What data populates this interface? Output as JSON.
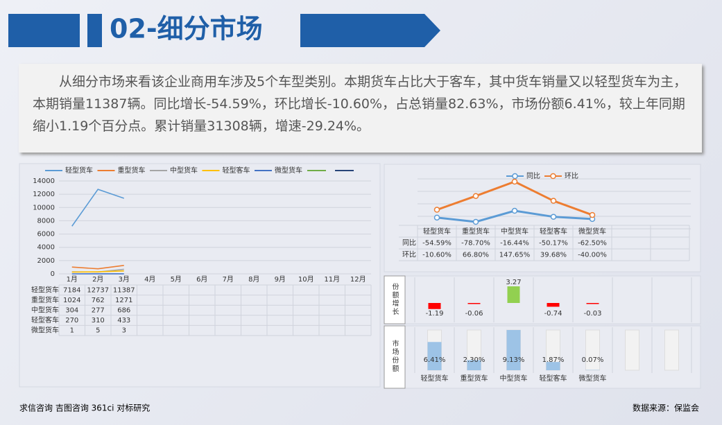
{
  "header": {
    "title": "02-细分市场"
  },
  "summary": "从细分市场来看该企业商用车涉及5个车型类别。本期货车占比大于客车，其中货车销量又以轻型货车为主，本期销量11387辆。同比增长-54.59%，环比增长-10.60%，占总销量82.63%，市场份额6.41%，较上年同期缩小1.19个百分点。累计销量31308辆，增速-29.24%。",
  "chart_data": [
    {
      "type": "line",
      "categories": [
        "1月",
        "2月",
        "3月",
        "4月",
        "5月",
        "6月",
        "7月",
        "8月",
        "9月",
        "10月",
        "11月",
        "12月"
      ],
      "ylim": [
        0,
        14000
      ],
      "yticks": [
        0,
        2000,
        4000,
        6000,
        8000,
        10000,
        12000,
        14000
      ],
      "grid": true,
      "series": [
        {
          "name": "轻型货车",
          "color": "#5b9bd5",
          "values": [
            7184,
            12737,
            11387,
            null,
            null,
            null,
            null,
            null,
            null,
            null,
            null,
            null
          ]
        },
        {
          "name": "重型货车",
          "color": "#ed7d31",
          "values": [
            1024,
            762,
            1271,
            null,
            null,
            null,
            null,
            null,
            null,
            null,
            null,
            null
          ]
        },
        {
          "name": "中型货车",
          "color": "#a5a5a5",
          "values": [
            304,
            277,
            686,
            null,
            null,
            null,
            null,
            null,
            null,
            null,
            null,
            null
          ]
        },
        {
          "name": "轻型客车",
          "color": "#ffc000",
          "values": [
            270,
            310,
            433,
            null,
            null,
            null,
            null,
            null,
            null,
            null,
            null,
            null
          ]
        },
        {
          "name": "微型货车",
          "color": "#4472c4",
          "values": [
            1,
            5,
            3,
            null,
            null,
            null,
            null,
            null,
            null,
            null,
            null,
            null
          ]
        }
      ]
    },
    {
      "type": "line",
      "categories": [
        "轻型货车",
        "重型货车",
        "中型货车",
        "轻型客车",
        "微型货车"
      ],
      "series": [
        {
          "name": "同比",
          "color": "#5b9bd5",
          "values": [
            -54.59,
            -78.7,
            -16.44,
            -50.17,
            -62.5
          ],
          "value_labels": [
            "-54.59%",
            "-78.70%",
            "-16.44%",
            "-50.17%",
            "-62.50%"
          ]
        },
        {
          "name": "环比",
          "color": "#ed7d31",
          "values": [
            -10.6,
            66.8,
            147.65,
            39.68,
            -40.0
          ],
          "value_labels": [
            "-10.60%",
            "66.80%",
            "147.65%",
            "39.68%",
            "-40.00%"
          ]
        }
      ]
    },
    {
      "type": "bar",
      "title": "份额增长",
      "values": [
        -1.19,
        -0.06,
        3.27,
        -0.74,
        -0.03
      ],
      "positive_color": "#92d050",
      "negative_color": "#ff0000"
    },
    {
      "type": "bar",
      "title": "市场份额",
      "categories": [
        "轻型货车",
        "重型货车",
        "中型货车",
        "轻型客车",
        "微型货车"
      ],
      "values": [
        6.41,
        2.3,
        9.13,
        1.87,
        0.07
      ],
      "value_labels": [
        "6.41%",
        "2.30%",
        "9.13%",
        "1.87%",
        "0.07%"
      ],
      "color": "#9dc3e6"
    }
  ],
  "footer": {
    "left": "求信咨询 吉图咨询 361ci 对标研究",
    "right": "数据来源：保监会"
  }
}
